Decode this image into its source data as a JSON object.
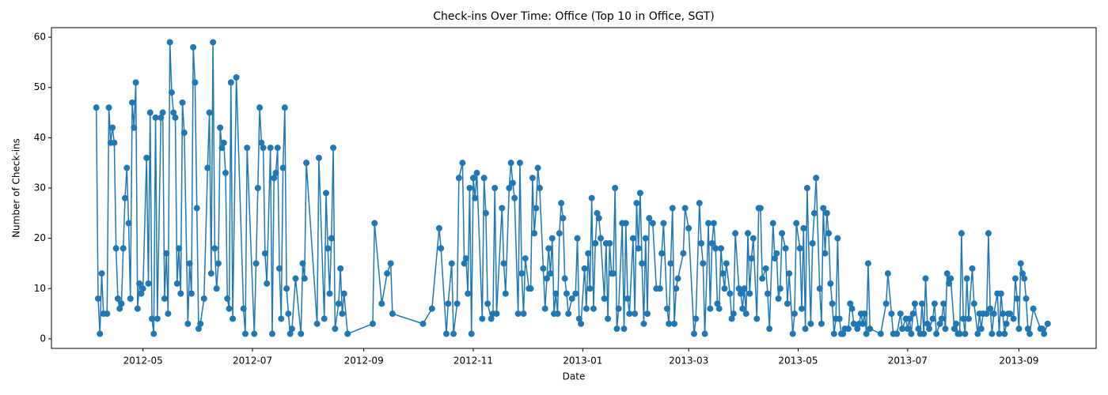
{
  "chart_data": {
    "type": "line",
    "title": "Check-ins Over Time: Office (Top 10 in Office, SGT)",
    "xlabel": "Date",
    "ylabel": "Number of Check-ins",
    "color": "#1f77b4",
    "grid": false,
    "xlim": [
      15410,
      15992
    ],
    "xticks": [
      {
        "value": 15461,
        "label": "2012-05"
      },
      {
        "value": 15522,
        "label": "2012-07"
      },
      {
        "value": 15584,
        "label": "2012-09"
      },
      {
        "value": 15645,
        "label": "2012-11"
      },
      {
        "value": 15706,
        "label": "2013-01"
      },
      {
        "value": 15765,
        "label": "2013-03"
      },
      {
        "value": 15826,
        "label": "2013-05"
      },
      {
        "value": 15887,
        "label": "2013-07"
      },
      {
        "value": 15949,
        "label": "2013-09"
      }
    ],
    "ylim": [
      -1.9,
      61.9
    ],
    "yticks": [
      0,
      10,
      20,
      30,
      40,
      50,
      60
    ],
    "x": [
      15435,
      15436,
      15437,
      15438,
      15439,
      15441,
      15442,
      15443,
      15444,
      15445,
      15446,
      15447,
      15448,
      15449,
      15450,
      15451,
      15452,
      15453,
      15454,
      15455,
      15456,
      15457,
      15458,
      15459,
      15460,
      15461,
      15463,
      15464,
      15465,
      15466,
      15467,
      15468,
      15469,
      15471,
      15472,
      15473,
      15474,
      15475,
      15476,
      15477,
      15478,
      15479,
      15480,
      15481,
      15482,
      15483,
      15484,
      15486,
      15487,
      15488,
      15489,
      15490,
      15491,
      15492,
      15493,
      15495,
      15497,
      15498,
      15499,
      15500,
      15501,
      15502,
      15503,
      15504,
      15505,
      15506,
      15507,
      15508,
      15509,
      15510,
      15511,
      15513,
      15517,
      15518,
      15519,
      15523,
      15524,
      15525,
      15526,
      15527,
      15528,
      15529,
      15530,
      15532,
      15533,
      15534,
      15535,
      15536,
      15537,
      15538,
      15539,
      15540,
      15541,
      15542,
      15543,
      15544,
      15546,
      15549,
      15550,
      15551,
      15552,
      15558,
      15559,
      15562,
      15563,
      15564,
      15565,
      15566,
      15567,
      15568,
      15570,
      15571,
      15572,
      15573,
      15575,
      15589,
      15590,
      15594,
      15597,
      15599,
      15600,
      15617,
      15622,
      15626,
      15627,
      15630,
      15631,
      15633,
      15634,
      15636,
      15637,
      15639,
      15640,
      15641,
      15642,
      15643,
      15644,
      15645,
      15646,
      15647,
      15650,
      15651,
      15652,
      15653,
      15655,
      15656,
      15657,
      15658,
      15661,
      15662,
      15663,
      15665,
      15666,
      15667,
      15668,
      15670,
      15671,
      15672,
      15673,
      15674,
      15676,
      15677,
      15678,
      15679,
      15680,
      15681,
      15682,
      15684,
      15685,
      15686,
      15687,
      15688,
      15689,
      15690,
      15691,
      15692,
      15693,
      15694,
      15695,
      15696,
      15697,
      15698,
      15700,
      15702,
      15703,
      15704,
      15705,
      15707,
      15708,
      15709,
      15710,
      15711,
      15712,
      15713,
      15714,
      15715,
      15716,
      15718,
      15719,
      15720,
      15721,
      15722,
      15723,
      15724,
      15725,
      15726,
      15728,
      15729,
      15730,
      15731,
      15732,
      15734,
      15735,
      15736,
      15737,
      15738,
      15739,
      15740,
      15741,
      15742,
      15743,
      15745,
      15747,
      15749,
      15750,
      15751,
      15753,
      15754,
      15755,
      15756,
      15757,
      15758,
      15759,
      15762,
      15763,
      15765,
      15768,
      15769,
      15771,
      15772,
      15773,
      15774,
      15776,
      15777,
      15778,
      15779,
      15780,
      15781,
      15782,
      15783,
      15784,
      15785,
      15786,
      15788,
      15789,
      15790,
      15791,
      15793,
      15794,
      15795,
      15796,
      15797,
      15798,
      15799,
      15800,
      15801,
      15803,
      15804,
      15805,
      15806,
      15808,
      15809,
      15810,
      15812,
      15813,
      15814,
      15815,
      15816,
      15817,
      15819,
      15820,
      15821,
      15823,
      15824,
      15825,
      15827,
      15828,
      15829,
      15830,
      15831,
      15833,
      15834,
      15835,
      15836,
      15838,
      15839,
      15840,
      15841,
      15842,
      15843,
      15844,
      15845,
      15846,
      15847,
      15848,
      15849,
      15850,
      15851,
      15852,
      15854,
      15855,
      15856,
      15857,
      15859,
      15860,
      15861,
      15862,
      15863,
      15864,
      15865,
      15866,
      15872,
      15875,
      15876,
      15878,
      15879,
      15881,
      15883,
      15884,
      15886,
      15887,
      15888,
      15889,
      15890,
      15891,
      15893,
      15894,
      15895,
      15896,
      15897,
      15898,
      15899,
      15901,
      15902,
      15903,
      15905,
      15906,
      15907,
      15908,
      15909,
      15910,
      15911,
      15913,
      15914,
      15915,
      15916,
      15917,
      15918,
      15919,
      15920,
      15921,
      15923,
      15924,
      15926,
      15927,
      15928,
      15929,
      15931,
      15932,
      15933,
      15934,
      15935,
      15937,
      15938,
      15939,
      15940,
      15941,
      15942,
      15943,
      15944,
      15946,
      15947,
      15948,
      15949,
      15950,
      15951,
      15952,
      15953,
      15954,
      15955,
      15957,
      15961,
      15962,
      15963,
      15965
    ],
    "values": [
      46,
      8,
      1,
      13,
      5,
      5,
      46,
      39,
      42,
      39,
      18,
      8,
      6,
      7,
      18,
      28,
      34,
      23,
      8,
      47,
      42,
      51,
      6,
      11,
      9,
      10,
      36,
      11,
      45,
      4,
      1,
      44,
      4,
      44,
      45,
      8,
      17,
      5,
      59,
      49,
      45,
      44,
      11,
      18,
      9,
      47,
      41,
      3,
      15,
      9,
      58,
      51,
      26,
      2,
      3,
      8,
      34,
      45,
      13,
      59,
      18,
      10,
      15,
      42,
      38,
      39,
      33,
      8,
      6,
      51,
      4,
      52,
      6,
      1,
      38,
      1,
      15,
      30,
      46,
      39,
      38,
      17,
      11,
      38,
      1,
      32,
      33,
      38,
      14,
      4,
      34,
      46,
      10,
      5,
      1,
      2,
      12,
      1,
      15,
      12,
      35,
      3,
      36,
      4,
      29,
      18,
      9,
      20,
      38,
      2,
      7,
      14,
      5,
      9,
      1,
      3,
      23,
      7,
      13,
      15,
      5,
      3,
      6,
      22,
      18,
      1,
      7,
      15,
      1,
      7,
      32,
      35,
      15,
      16,
      9,
      30,
      1,
      32,
      28,
      33,
      4,
      32,
      25,
      7,
      4,
      5,
      30,
      5,
      26,
      15,
      9,
      30,
      35,
      31,
      28,
      5,
      35,
      13,
      5,
      16,
      10,
      10,
      32,
      21,
      26,
      34,
      30,
      14,
      6,
      12,
      18,
      13,
      20,
      5,
      9,
      5,
      21,
      27,
      24,
      12,
      9,
      5,
      8,
      9,
      20,
      4,
      3,
      14,
      6,
      17,
      10,
      28,
      6,
      19,
      25,
      24,
      20,
      8,
      19,
      4,
      19,
      13,
      13,
      30,
      2,
      6,
      23,
      2,
      23,
      8,
      5,
      20,
      5,
      27,
      18,
      29,
      15,
      3,
      20,
      5,
      24,
      23,
      10,
      10,
      17,
      23,
      6,
      3,
      15,
      26,
      3,
      10,
      12,
      17,
      26,
      22,
      1,
      4,
      27,
      19,
      15,
      1,
      23,
      6,
      19,
      23,
      18,
      7,
      6,
      18,
      13,
      10,
      15,
      9,
      4,
      5,
      21,
      10,
      9,
      6,
      10,
      5,
      21,
      9,
      16,
      20,
      4,
      26,
      26,
      12,
      14,
      9,
      2,
      23,
      16,
      17,
      8,
      10,
      21,
      18,
      7,
      13,
      1,
      5,
      23,
      18,
      6,
      22,
      2,
      30,
      3,
      19,
      25,
      32,
      10,
      3,
      26,
      17,
      25,
      21,
      11,
      7,
      1,
      4,
      20,
      4,
      1,
      1,
      2,
      2,
      7,
      6,
      3,
      2,
      3,
      5,
      3,
      5,
      1,
      15,
      2,
      1,
      7,
      13,
      5,
      1,
      1,
      5,
      2,
      4,
      2,
      4,
      1,
      5,
      7,
      2,
      1,
      7,
      1,
      12,
      3,
      2,
      4,
      7,
      1,
      3,
      4,
      7,
      2,
      13,
      11,
      12,
      2,
      3,
      1,
      1,
      21,
      4,
      1,
      12,
      4,
      14,
      7,
      1,
      5,
      2,
      5,
      5,
      21,
      6,
      1,
      5,
      9,
      1,
      9,
      5,
      1,
      3,
      5,
      5,
      4,
      12,
      8,
      2,
      15,
      13,
      12,
      8,
      2,
      1,
      6,
      2,
      2,
      1,
      3
    ]
  }
}
